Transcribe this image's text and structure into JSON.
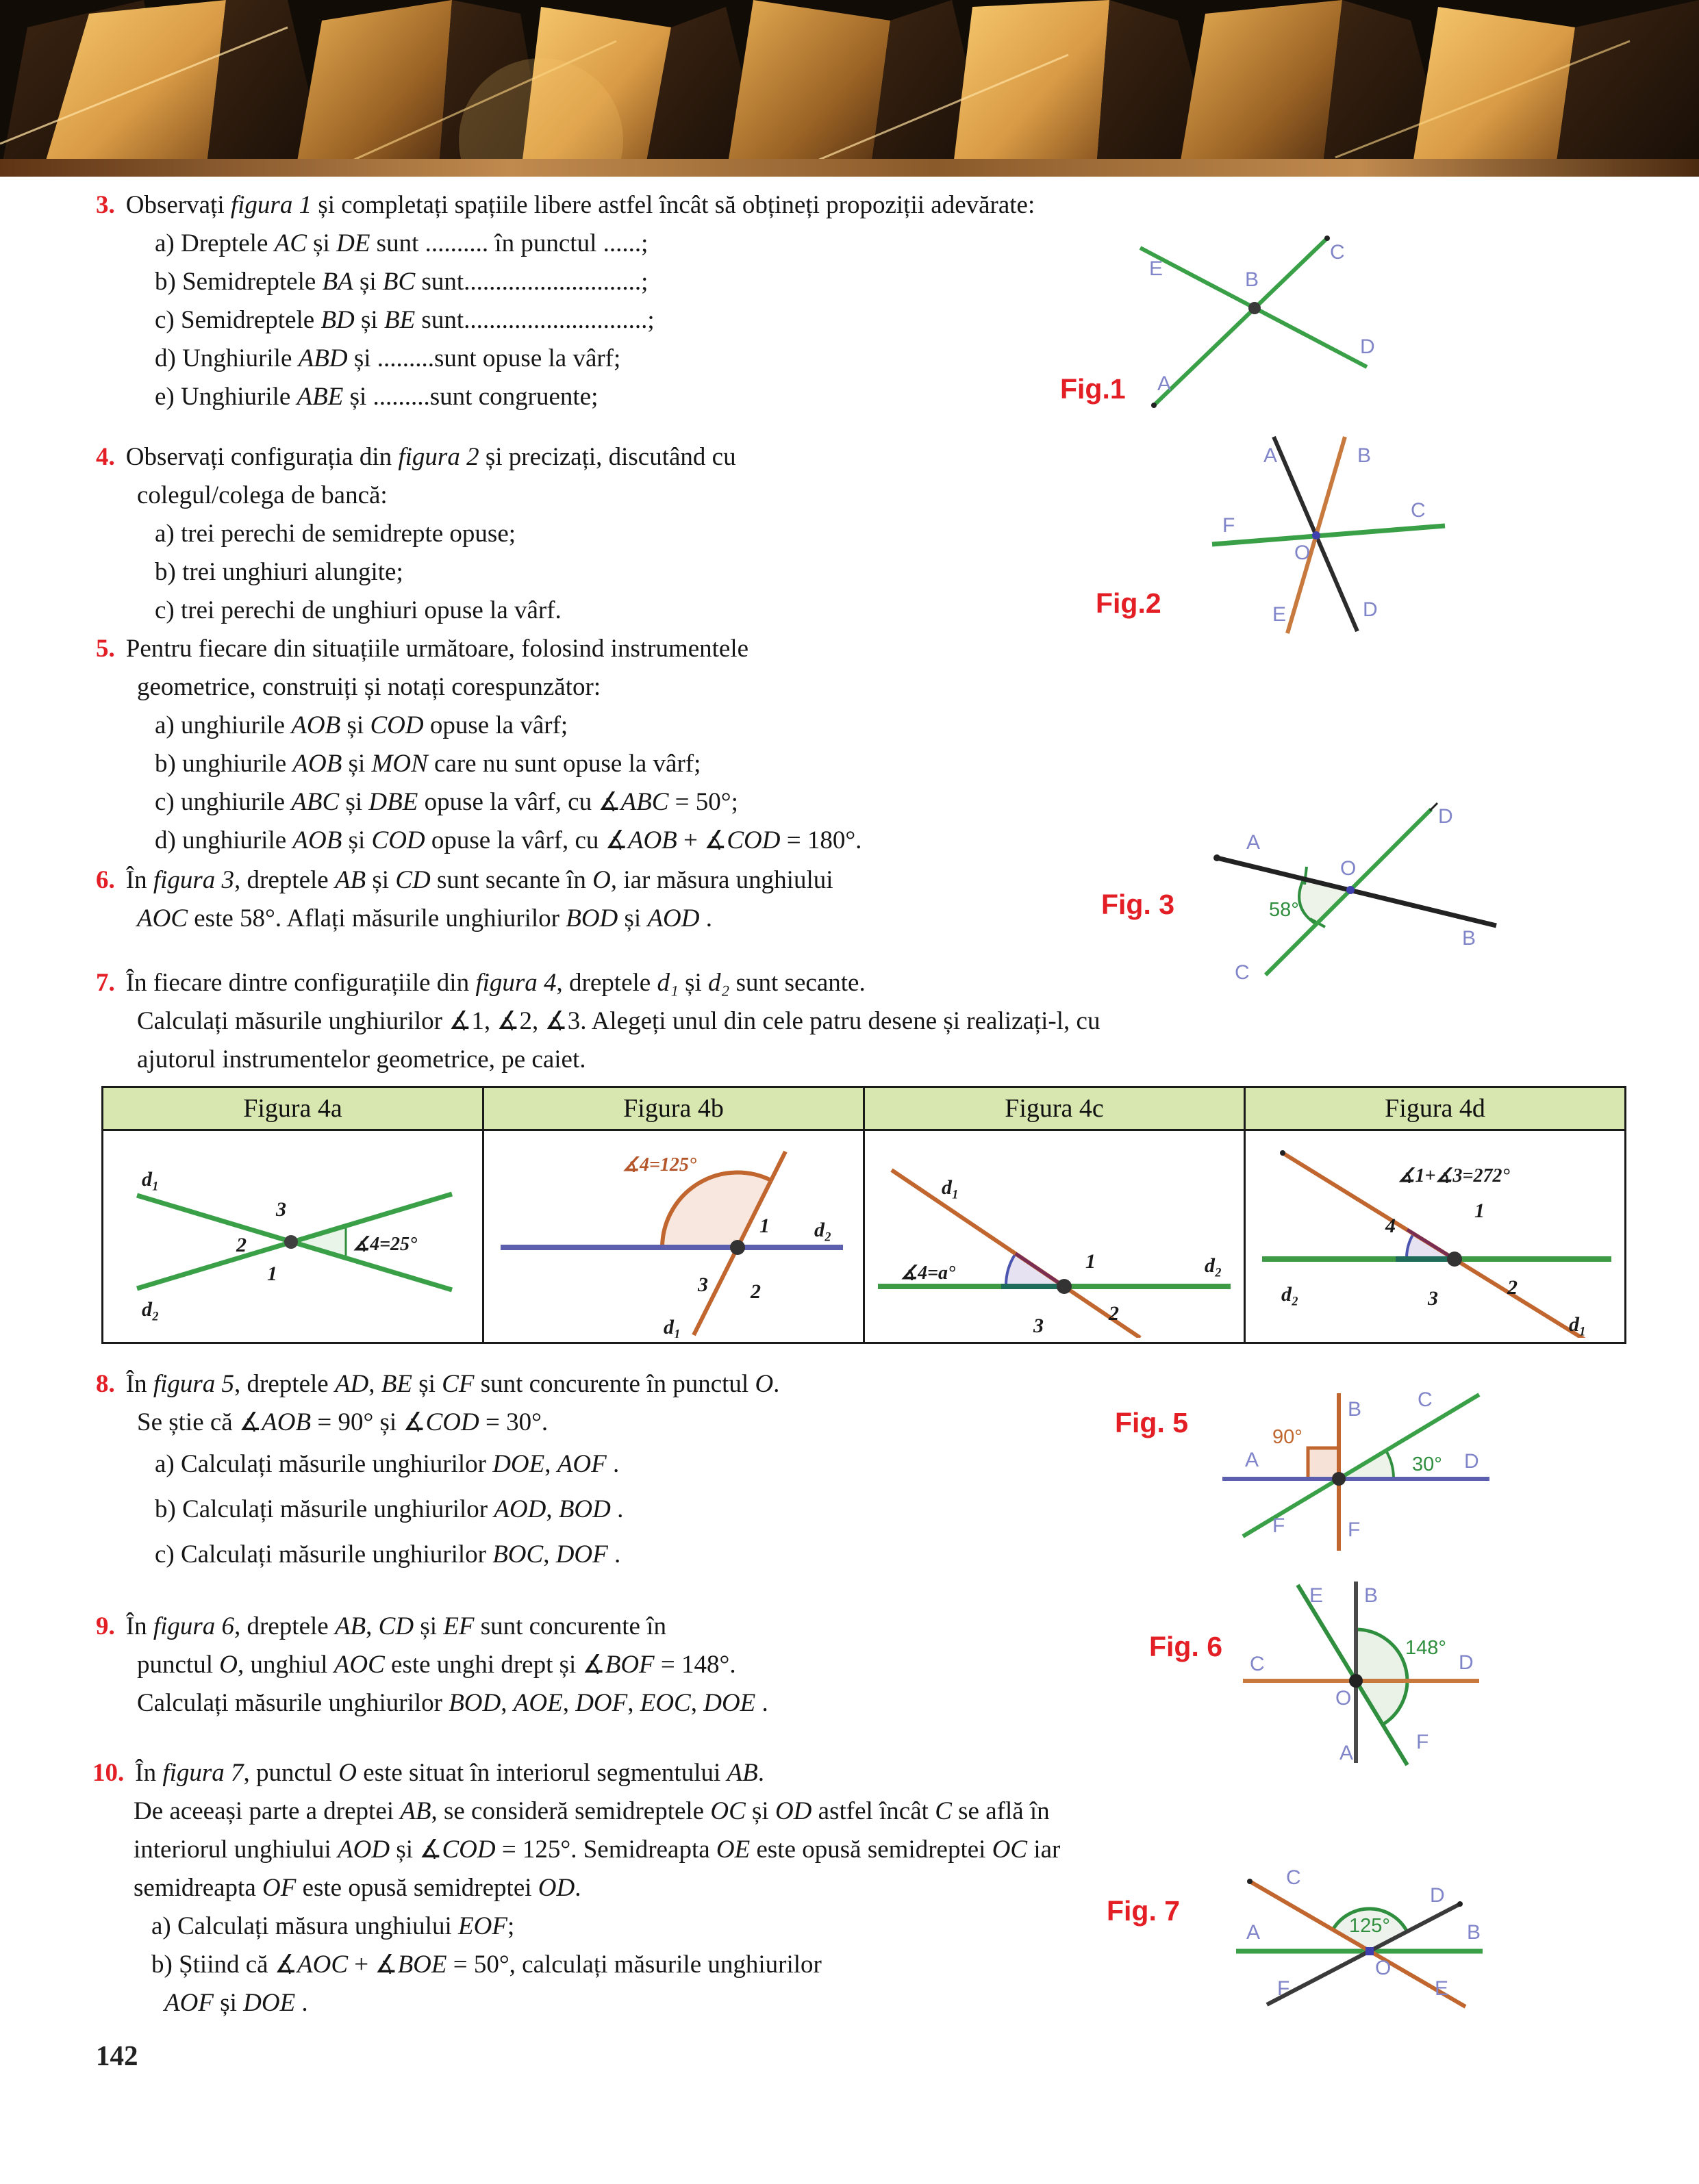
{
  "exercises": {
    "e3": {
      "num": "3.",
      "intro": "Observați *figura 1* și completați spațiile libere astfel încât să obțineți propoziții adevărate:",
      "items": [
        "a) Dreptele *AC* și *DE* sunt .......... în punctul ......;",
        "b) Semidreptele *BA* și *BC* sunt............................;",
        "c) Semidreptele *BD* și *BE* sunt.............................;",
        "d) Unghiurile *ABD* și .........sunt opuse la vârf;",
        "e) Unghiurile *ABE* și .........sunt congruente;"
      ]
    },
    "e4": {
      "num": "4.",
      "lines": [
        "Observați configurația din *figura 2* și precizați, discutând cu",
        "colegul/colega de bancă:"
      ],
      "items": [
        "a)  trei perechi de semidrepte opuse;",
        "b)  trei unghiuri alungite;",
        "c)  trei perechi de unghiuri opuse la vârf."
      ]
    },
    "e5": {
      "num": "5.",
      "lines": [
        "Pentru fiecare din situațiile următoare, folosind instrumentele",
        "geometrice, construiți și notați corespunzător:"
      ],
      "items": [
        "a)  unghiurile *AOB* și *COD* opuse la vârf;",
        "b)  unghiurile *AOB* și *MON* care nu sunt opuse la vârf;",
        "c)  unghiurile *ABC* și *DBE* opuse la vârf,  cu ∡*ABC* = 50°;",
        "d)  unghiurile *AOB* și *COD* opuse la vârf, cu ∡*AOB* + ∡*COD* = 180°."
      ]
    },
    "e6": {
      "num": "6.",
      "lines": [
        "În *figura 3,* dreptele *AB* și *CD* sunt secante în *O,* iar măsura unghiului",
        "*AOC* este 58°. Aflați măsurile unghiurilor *BOD* și *AOD* ."
      ]
    },
    "e7": {
      "num": "7.",
      "lines": [
        "În fiecare dintre configurațiile din *figura 4*, dreptele *d₁* și *d₂* sunt secante.",
        "Calculați măsurile unghiurilor ∡1, ∡2, ∡3. Alegeți unul din cele patru desene și realizați-l, cu",
        "ajutorul instrumentelor geometrice, pe caiet."
      ]
    },
    "e8": {
      "num": "8.",
      "lines": [
        "În *figura 5*, dreptele *AD*, *BE* și *CF* sunt concurente în punctul *O*.",
        "Se știe că ∡*AOB* = 90° și ∡*COD* = 30°."
      ],
      "items": [
        "a)  Calculați măsurile unghiurilor *DOE*, *AOF* .",
        "b)  Calculați măsurile unghiurilor *AOD*, *BOD* .",
        "c)  Calculați măsurile unghiurilor *BOC*, *DOF* ."
      ]
    },
    "e9": {
      "num": "9.",
      "lines": [
        "În *figura 6,* dreptele *AB*, *CD* și *EF* sunt concurente în",
        "punctul *O*, unghiul *AOC* este unghi drept și ∡*BOF* = 148°.",
        "Calculați măsurile unghiurilor *BOD*, *AOE*, *DOF*, *EOC*, *DOE* ."
      ]
    },
    "e10": {
      "num": "10.",
      "lines": [
        "În *figura 7*, punctul *O* este situat în interiorul segmentului *AB*.",
        "De aceeași parte a dreptei *AB*, se consideră semidreptele *OC* și *OD* astfel încât *C* se află în",
        "interiorul unghiului *AOD* și ∡*COD* = 125°. Semidreapta *OE* este opusă semidreptei *OC* iar",
        "semidreapta *OF* este opusă semidreptei *OD*."
      ],
      "items": [
        "a) Calculați măsura unghiului *EOF*;",
        "b) Știind că ∡*AOC* + ∡*BOE* = 50°, calculați măsurile unghiurilor",
        "*AOF* și *DOE* ."
      ]
    }
  },
  "fig_labels": {
    "f1": "Fig.1",
    "f2": "Fig.2",
    "f3": "Fig. 3",
    "f5": "Fig. 5",
    "f6": "Fig. 6",
    "f7": "Fig. 7"
  },
  "table": {
    "headers": [
      "Figura 4a",
      "Figura 4b",
      "Figura 4c",
      "Figura 4d"
    ]
  },
  "diagrams": {
    "fig1": {
      "A": "A",
      "B": "B",
      "C": "C",
      "D": "D",
      "E": "E"
    },
    "fig2": {
      "A": "A",
      "B": "B",
      "C": "C",
      "D": "D",
      "E": "E",
      "F": "F",
      "O": "O"
    },
    "fig3": {
      "A": "A",
      "B": "B",
      "C": "C",
      "D": "D",
      "O": "O",
      "angle": "58°"
    },
    "fig4a": {
      "d1": "d₁",
      "d2": "d₂",
      "n1": "1",
      "n2": "2",
      "n3": "3",
      "note": "∡4=25°"
    },
    "fig4b": {
      "d1": "d₁",
      "d2": "d₂",
      "n1": "1",
      "n2": "2",
      "n3": "3",
      "note": "∡4=125°"
    },
    "fig4c": {
      "d1": "d₁",
      "d2": "d₂",
      "n1": "1",
      "n2": "2",
      "n3": "3",
      "note": "∡4=a°"
    },
    "fig4d": {
      "d1": "d₁",
      "d2": "d₂",
      "n1": "1",
      "n2": "2",
      "n3": "3",
      "n4": "4",
      "note": "∡1+∡3=272°"
    },
    "fig5": {
      "A": "A",
      "B": "B",
      "C": "C",
      "D": "D",
      "F1": "F",
      "F2": "F",
      "right": "90°",
      "a30": "30°"
    },
    "fig6": {
      "A": "A",
      "B": "B",
      "C": "C",
      "D": "D",
      "E": "E",
      "F": "F",
      "O": "O",
      "angle": "148°"
    },
    "fig7": {
      "A": "A",
      "B": "B",
      "C": "C",
      "D": "D",
      "E": "E",
      "F": "F",
      "O": "O",
      "angle": "125°"
    }
  },
  "page_number": "142"
}
